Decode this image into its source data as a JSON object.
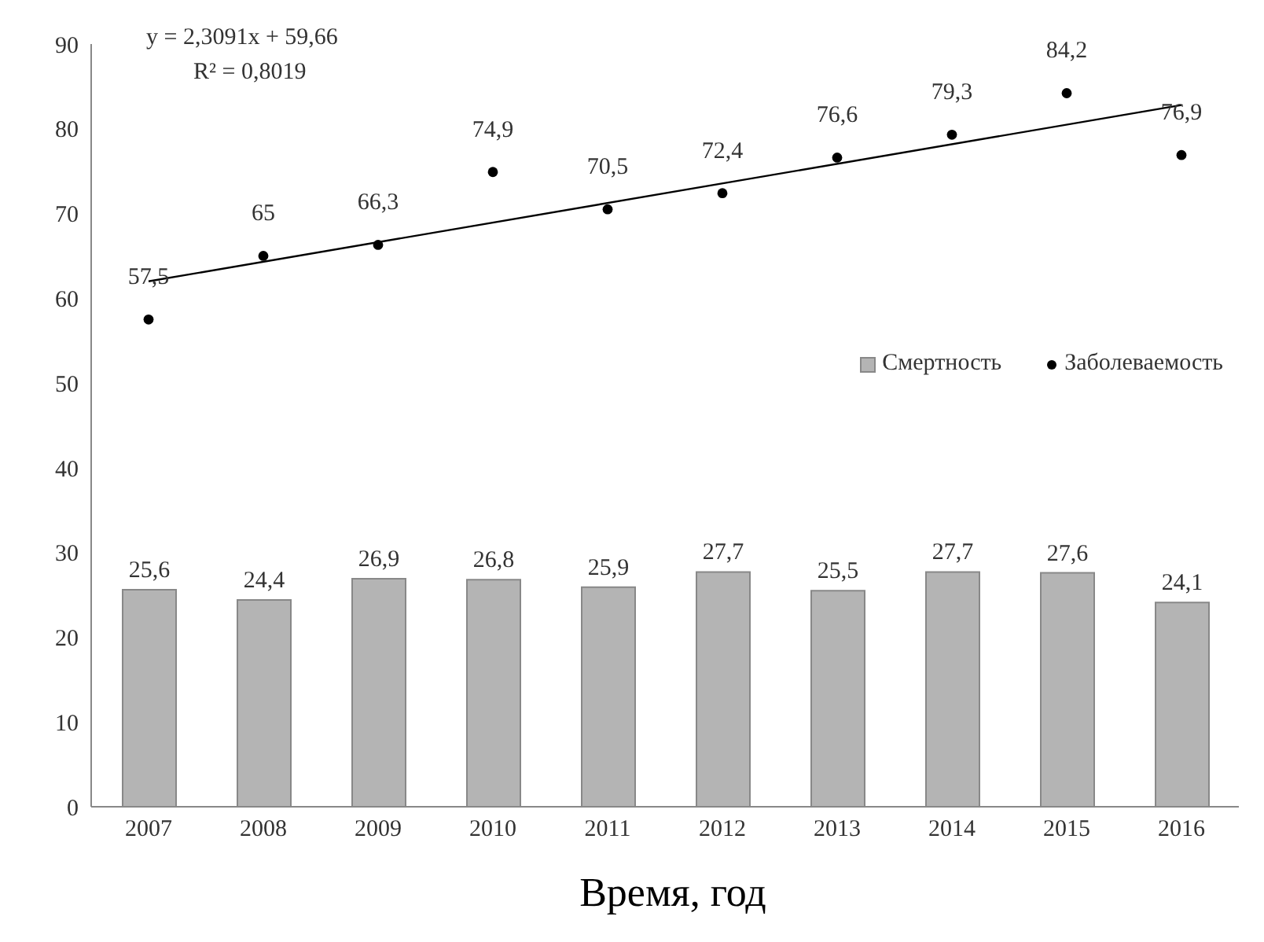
{
  "chart_data": {
    "type": "bar",
    "xlabel": "Время, год",
    "categories": [
      "2007",
      "2008",
      "2009",
      "2010",
      "2011",
      "2012",
      "2013",
      "2014",
      "2015",
      "2016"
    ],
    "series": [
      {
        "name": "Смертность",
        "color": "#b4b4b4",
        "values": [
          25.6,
          24.4,
          26.9,
          26.8,
          25.9,
          27.7,
          25.5,
          27.7,
          27.6,
          24.1
        ],
        "value_labels": [
          "25,6",
          "24,4",
          "26,9",
          "26,8",
          "25,9",
          "27,7",
          "25,5",
          "27,7",
          "27,6",
          "24,1"
        ]
      },
      {
        "name": "Заболеваемость",
        "type": "scatter",
        "color": "#000000",
        "marker": "circle",
        "values": [
          57.5,
          65,
          66.3,
          74.9,
          70.5,
          72.4,
          76.6,
          79.3,
          84.2,
          76.9
        ],
        "value_labels": [
          "57,5",
          "65",
          "66,3",
          "74,9",
          "70,5",
          "72,4",
          "76,6",
          "79,3",
          "84,2",
          "76,9"
        ]
      },
      {
        "type": "line",
        "color": "#000000",
        "values": [
          62.0,
          null,
          null,
          null,
          null,
          null,
          null,
          null,
          null,
          82.8
        ]
      }
    ],
    "annotations": [
      "y = 2,3091x + 59,66",
      "R² = 0,8019"
    ],
    "ylim": [
      0,
      90
    ],
    "yticks": [
      0,
      10,
      20,
      30,
      40,
      50,
      60,
      70,
      80,
      90
    ],
    "grid": false,
    "legend": "right"
  }
}
